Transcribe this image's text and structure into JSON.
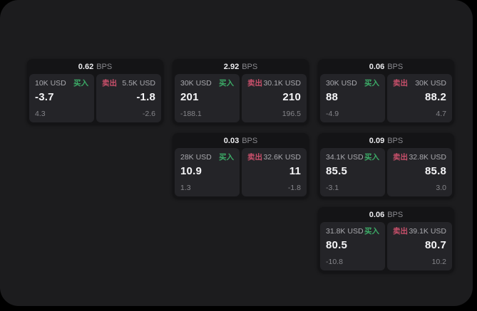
{
  "labels": {
    "bps": "BPS",
    "buy": "买入",
    "sell": "卖出",
    "currency_unit": "USD"
  },
  "colors": {
    "background": "#000000",
    "window_bg": "#1c1c1e",
    "card_bg": "#141416",
    "panel_bg": "#242428",
    "buy": "#3cab67",
    "sell": "#c9506b"
  },
  "cards": [
    {
      "bps": "0.62",
      "col": 1,
      "row": 1,
      "buy": {
        "size": "10K USD",
        "value": "-3.7",
        "sub": "4.3"
      },
      "sell": {
        "size": "5.5K USD",
        "value": "-1.8",
        "sub": "-2.6"
      }
    },
    {
      "bps": "2.92",
      "col": 2,
      "row": 1,
      "buy": {
        "size": "30K USD",
        "value": "201",
        "sub": "-188.1"
      },
      "sell": {
        "size": "30.1K USD",
        "value": "210",
        "sub": "196.5"
      }
    },
    {
      "bps": "0.06",
      "col": 3,
      "row": 1,
      "buy": {
        "size": "30K USD",
        "value": "88",
        "sub": "-4.9"
      },
      "sell": {
        "size": "30K USD",
        "value": "88.2",
        "sub": "4.7"
      }
    },
    {
      "bps": "0.03",
      "col": 2,
      "row": 2,
      "buy": {
        "size": "28K USD",
        "value": "10.9",
        "sub": "1.3"
      },
      "sell": {
        "size": "32.6K USD",
        "value": "11",
        "sub": "-1.8"
      }
    },
    {
      "bps": "0.09",
      "col": 3,
      "row": 2,
      "buy": {
        "size": "34.1K USD",
        "value": "85.5",
        "sub": "-3.1"
      },
      "sell": {
        "size": "32.8K USD",
        "value": "85.8",
        "sub": "3.0"
      }
    },
    {
      "bps": "0.06",
      "col": 3,
      "row": 3,
      "buy": {
        "size": "31.8K USD",
        "value": "80.5",
        "sub": "-10.8"
      },
      "sell": {
        "size": "39.1K USD",
        "value": "80.7",
        "sub": "10.2"
      }
    }
  ]
}
